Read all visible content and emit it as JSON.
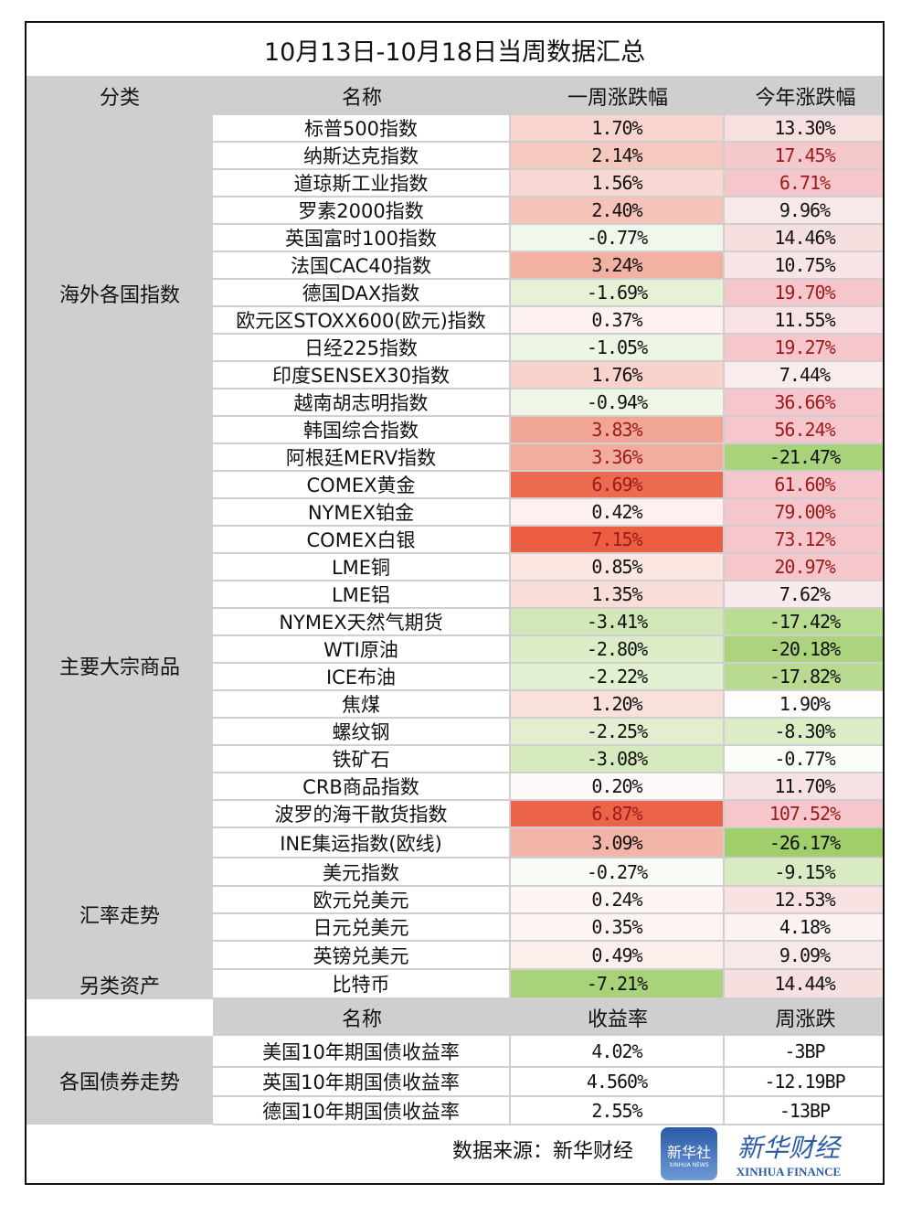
{
  "title": "10月13日-10月18日当周数据汇总",
  "header": {
    "category": "分类",
    "name": "名称",
    "week": "一周涨跌幅",
    "year": "今年涨跌幅"
  },
  "categories": [
    "海外各国指数",
    "主要大宗商品",
    "汇率走势",
    "另类资产",
    "各国债券走势"
  ],
  "rows": [
    {
      "name": "标普500指数",
      "week": "1.70%",
      "week_bg": "#f8d5cf",
      "year": "13.30%",
      "year_bg": "#f6e0e0"
    },
    {
      "name": "纳斯达克指数",
      "week": "2.14%",
      "week_bg": "#f6c9bf",
      "year": "17.45%",
      "year_bg": "#f5c8cc",
      "year_red": true
    },
    {
      "name": "道琼斯工业指数",
      "week": "1.56%",
      "week_bg": "#f8d8d2",
      "year": "6.71%",
      "year_bg": "#f5c7cc",
      "year_red": true
    },
    {
      "name": "罗素2000指数",
      "week": "2.40%",
      "week_bg": "#f5c3b8",
      "year": "9.96%",
      "year_bg": "#f8e8e8"
    },
    {
      "name": "英国富时100指数",
      "week": "-0.77%",
      "week_bg": "#f1f7ea",
      "year": "14.46%",
      "year_bg": "#f5dfdf"
    },
    {
      "name": "法国CAC40指数",
      "week": "3.24%",
      "week_bg": "#f2b1a2",
      "year": "10.75%",
      "year_bg": "#f7e4e4"
    },
    {
      "name": "德国DAX指数",
      "week": "-1.69%",
      "week_bg": "#e6f2d6",
      "year": "19.70%",
      "year_bg": "#f5c6cb",
      "year_red": true
    },
    {
      "name": "欧元区STOXX600(欧元)指数",
      "week": "0.37%",
      "week_bg": "#fdf2f0",
      "year": "11.55%",
      "year_bg": "#f7e3e3"
    },
    {
      "name": "日经225指数",
      "week": "-1.05%",
      "week_bg": "#edf5e3",
      "year": "19.27%",
      "year_bg": "#f5c6cb",
      "year_red": true
    },
    {
      "name": "印度SENSEX30指数",
      "week": "1.76%",
      "week_bg": "#f7d3cc",
      "year": "7.44%",
      "year_bg": "#f9ecec"
    },
    {
      "name": "越南胡志明指数",
      "week": "-0.94%",
      "week_bg": "#eef6e6",
      "year": "36.66%",
      "year_bg": "#f5c6cb",
      "year_red": true
    },
    {
      "name": "韩国综合指数",
      "week": "3.83%",
      "week_bg": "#f0a595",
      "week_red": true,
      "year": "56.24%",
      "year_bg": "#f5c6cb",
      "year_red": true
    },
    {
      "name": "阿根廷MERV指数",
      "week": "3.36%",
      "week_bg": "#f1ae9f",
      "week_red": true,
      "year": "-21.47%",
      "year_bg": "#a9d37a"
    },
    {
      "name": "COMEX黄金",
      "week": "6.69%",
      "week_bg": "#ec6a4f",
      "week_red": true,
      "year": "61.60%",
      "year_bg": "#f5c6cb",
      "year_red": true
    },
    {
      "name": "NYMEX铂金",
      "week": "0.42%",
      "week_bg": "#fdf0ed",
      "year": "79.00%",
      "year_bg": "#f5c6cb",
      "year_red": true
    },
    {
      "name": "COMEX白银",
      "week": "7.15%",
      "week_bg": "#eb5e42",
      "week_red": true,
      "year": "73.12%",
      "year_bg": "#f5c6cb",
      "year_red": true
    },
    {
      "name": "LME铜",
      "week": "0.85%",
      "week_bg": "#fbe6e2",
      "year": "20.97%",
      "year_bg": "#f5c6cb",
      "year_red": true
    },
    {
      "name": "LME铝",
      "week": "1.35%",
      "week_bg": "#f9ddd8",
      "year": "7.62%",
      "year_bg": "#f9ebeb"
    },
    {
      "name": "NYMEX天然气期货",
      "week": "-3.41%",
      "week_bg": "#d3e8b9",
      "year": "-17.42%",
      "year_bg": "#b9dc93"
    },
    {
      "name": "WTI原油",
      "week": "-2.80%",
      "week_bg": "#dbecc6",
      "year": "-20.18%",
      "year_bg": "#acd47f"
    },
    {
      "name": "ICE布油",
      "week": "-2.22%",
      "week_bg": "#e2f0d2",
      "year": "-17.82%",
      "year_bg": "#b8db91"
    },
    {
      "name": "焦煤",
      "week": "1.20%",
      "week_bg": "#f9e0db",
      "year": "1.90%",
      "year_bg": "#fefcfc"
    },
    {
      "name": "螺纹钢",
      "week": "-2.25%",
      "week_bg": "#e1efd0",
      "year": "-8.30%",
      "year_bg": "#dbedc7"
    },
    {
      "name": "铁矿石",
      "week": "-3.08%",
      "week_bg": "#d7eabf",
      "year": "-0.77%",
      "year_bg": "#fbfdf8"
    },
    {
      "name": "CRB商品指数",
      "week": "0.20%",
      "week_bg": "#fdf9f8",
      "year": "11.70%",
      "year_bg": "#f6e2e2"
    },
    {
      "name": "波罗的海干散货指数",
      "week": "6.87%",
      "week_bg": "#eb6449",
      "week_red": true,
      "year": "107.52%",
      "year_bg": "#f5c6cb",
      "year_red": true
    },
    {
      "name": "INE集运指数(欧线)",
      "week": "3.09%",
      "week_bg": "#f3b5a7",
      "year": "-26.17%",
      "year_bg": "#9fce6b"
    },
    {
      "name": "美元指数",
      "week": "-0.27%",
      "week_bg": "#f9fcf6",
      "year": "-9.15%",
      "year_bg": "#d8ebc2"
    },
    {
      "name": "欧元兑美元",
      "week": "0.24%",
      "week_bg": "#fdf6f4",
      "year": "12.53%",
      "year_bg": "#f7e1e1"
    },
    {
      "name": "日元兑美元",
      "week": "0.35%",
      "week_bg": "#fdf3f1",
      "year": "4.18%",
      "year_bg": "#fbf2f2"
    },
    {
      "name": "英镑兑美元",
      "week": "0.49%",
      "week_bg": "#fcefec",
      "year": "9.09%",
      "year_bg": "#f8e9e9"
    },
    {
      "name": "比特币",
      "week": "-7.21%",
      "week_bg": "#a9d37a",
      "year": "14.44%",
      "year_bg": "#f5dfdf"
    }
  ],
  "bond_header": {
    "name": "名称",
    "yield": "收益率",
    "change": "周涨跌"
  },
  "bonds": [
    {
      "name": "美国10年期国债收益率",
      "yield": "4.02%",
      "change": "-3BP"
    },
    {
      "name": "英国10年期国债收益率",
      "yield": "4.560%",
      "change": "-12.19BP"
    },
    {
      "name": "德国10年期国债收益率",
      "yield": "2.55%",
      "change": "-13BP"
    }
  ],
  "footer": {
    "source": "数据来源：新华财经",
    "logo1_cn": "新华社",
    "logo1_en": "XINHUA NEWS",
    "logo2_cn": "新华财经",
    "logo2_en": "XINHUA FINANCE"
  },
  "colors": {
    "header_gray": "#d0cece",
    "up_text": "#9c1a1a",
    "logo_blue": "#2b5ba8"
  }
}
